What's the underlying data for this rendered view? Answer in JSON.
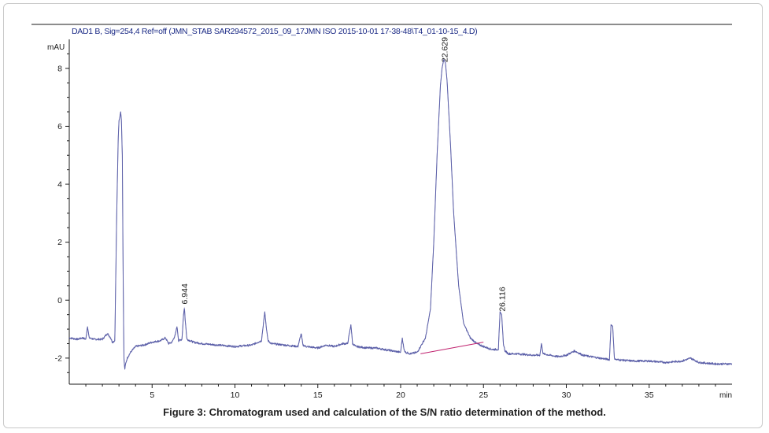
{
  "figure": {
    "caption": "Figure 3: Chromatogram used and calculation of the S/N ratio determination of the method."
  },
  "colors": {
    "trace": "#5b5fa8",
    "baseline": "#c0226f",
    "axis": "#1a1a1a",
    "header_text": "#1c2b86"
  },
  "chart_data": {
    "type": "line",
    "title": "DAD1 B, Sig=254,4 Ref=off (JMN_STAB SAR294572_2015_09_17JMN ISO 2015-10-01 17-38-48\\T4_01-10-15_4.D)",
    "xlabel": "min",
    "ylabel": "mAU",
    "xlim": [
      0,
      40
    ],
    "ylim": [
      -2.9,
      9
    ],
    "xticks": [
      5,
      10,
      15,
      20,
      25,
      30,
      35
    ],
    "xtick_labels": [
      "5",
      "10",
      "15",
      "20",
      "25",
      "30",
      "35"
    ],
    "yticks": [
      -2,
      0,
      2,
      4,
      6,
      8
    ],
    "ytick_labels": [
      "-2",
      "0",
      "2",
      "4",
      "6",
      "8"
    ],
    "grid": false,
    "peaks": [
      {
        "label": "6.944",
        "rt": 6.944,
        "height": -0.25
      },
      {
        "label": "22.629",
        "rt": 22.629,
        "height": 8.1
      },
      {
        "label": "26.116",
        "rt": 26.116,
        "height": -0.5
      }
    ],
    "integration_baseline": {
      "x": [
        21.2,
        25.0
      ],
      "y": [
        -1.85,
        -1.45
      ]
    },
    "series": [
      {
        "x": [
          0,
          0.5,
          0.8,
          1.0,
          1.1,
          1.2,
          1.5,
          2.0,
          2.3,
          2.5,
          2.6,
          2.75,
          2.85,
          2.95,
          3.0,
          3.05,
          3.1,
          3.15,
          3.2,
          3.25,
          3.3,
          3.35,
          3.4,
          3.5,
          3.7,
          4.0,
          4.5,
          5.0,
          5.5,
          5.8,
          6.0,
          6.2,
          6.4,
          6.5,
          6.6,
          6.8,
          6.9,
          6.95,
          7.0,
          7.1,
          7.3,
          7.5,
          8.0,
          9.0,
          10.0,
          11.0,
          11.6,
          11.8,
          11.9,
          12.0,
          12.2,
          13.0,
          13.8,
          14.0,
          14.1,
          14.3,
          15.0,
          15.5,
          16.0,
          16.5,
          16.8,
          17.0,
          17.1,
          17.3,
          18.0,
          18.5,
          19.0,
          20.0,
          20.1,
          20.2,
          20.3,
          20.6,
          21.0,
          21.5,
          21.8,
          22.0,
          22.2,
          22.4,
          22.5,
          22.6,
          22.7,
          22.8,
          23.0,
          23.2,
          23.5,
          23.8,
          24.2,
          24.6,
          25.0,
          25.5,
          25.9,
          26.0,
          26.1,
          26.2,
          26.3,
          26.5,
          27.0,
          28.0,
          28.4,
          28.5,
          28.6,
          29.0,
          29.5,
          30.0,
          30.5,
          31.0,
          32.0,
          32.6,
          32.7,
          32.8,
          32.9,
          33.0,
          34.0,
          35.0,
          36.0,
          37.0,
          37.5,
          38.0,
          39.0,
          40.0
        ],
        "y": [
          -1.3,
          -1.35,
          -1.3,
          -1.35,
          -0.9,
          -1.3,
          -1.35,
          -1.35,
          -1.15,
          -1.3,
          -1.45,
          -1.4,
          2.5,
          5.5,
          6.2,
          6.3,
          6.5,
          6.2,
          5.0,
          1.0,
          -2.0,
          -2.4,
          -2.2,
          -2.0,
          -1.8,
          -1.6,
          -1.55,
          -1.45,
          -1.4,
          -1.3,
          -1.5,
          -1.45,
          -1.2,
          -0.9,
          -1.4,
          -1.35,
          -0.5,
          -0.25,
          -0.7,
          -1.35,
          -1.4,
          -1.45,
          -1.5,
          -1.55,
          -1.6,
          -1.55,
          -1.4,
          -0.4,
          -1.0,
          -1.4,
          -1.5,
          -1.55,
          -1.6,
          -1.15,
          -1.55,
          -1.6,
          -1.65,
          -1.55,
          -1.6,
          -1.5,
          -1.5,
          -0.85,
          -1.5,
          -1.6,
          -1.65,
          -1.65,
          -1.7,
          -1.8,
          -1.3,
          -1.7,
          -1.8,
          -1.85,
          -1.8,
          -1.3,
          -0.3,
          2.0,
          5.0,
          7.4,
          8.0,
          8.3,
          8.2,
          7.6,
          5.5,
          3.0,
          0.5,
          -0.8,
          -1.3,
          -1.5,
          -1.6,
          -1.7,
          -1.7,
          -0.4,
          -0.5,
          -1.5,
          -1.75,
          -1.85,
          -1.85,
          -1.9,
          -1.9,
          -1.5,
          -1.85,
          -1.9,
          -1.95,
          -1.9,
          -1.75,
          -1.9,
          -2.0,
          -2.05,
          -0.85,
          -0.9,
          -2.0,
          -2.05,
          -2.1,
          -2.1,
          -2.15,
          -2.1,
          -2.0,
          -2.15,
          -2.2,
          -2.2
        ]
      }
    ]
  }
}
